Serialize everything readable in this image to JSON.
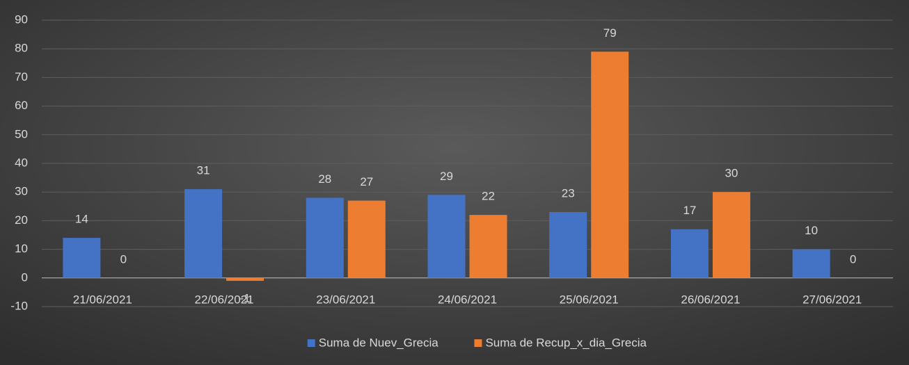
{
  "chart_data": {
    "type": "bar",
    "categories": [
      "21/06/2021",
      "22/06/2021",
      "23/06/2021",
      "24/06/2021",
      "25/06/2021",
      "26/06/2021",
      "27/06/2021"
    ],
    "series": [
      {
        "name": "Suma de Nuev_Grecia",
        "color": "#4472c4",
        "values": [
          14,
          31,
          28,
          29,
          23,
          17,
          10
        ]
      },
      {
        "name": "Suma de Recup_x_dia_Grecia",
        "color": "#ed7d31",
        "values": [
          0,
          -1,
          27,
          22,
          79,
          30,
          0
        ]
      }
    ],
    "ylim": [
      -10,
      90
    ],
    "yticks": [
      -10,
      0,
      10,
      20,
      30,
      40,
      50,
      60,
      70,
      80,
      90
    ],
    "grid": true,
    "legend": "bottom"
  }
}
